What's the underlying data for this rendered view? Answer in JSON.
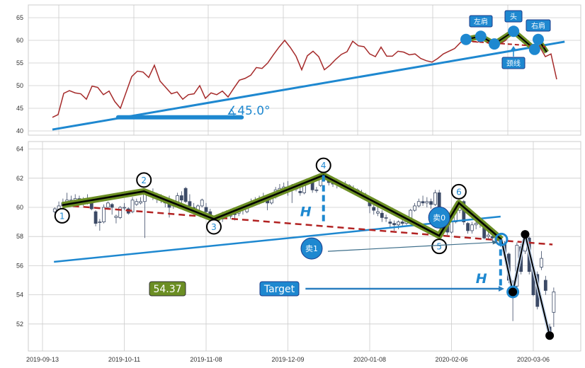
{
  "colors": {
    "price_line": "#a52a2a",
    "trend_blue": "#1e88d0",
    "pattern_green": "#6b8e23",
    "pattern_black": "#000000",
    "neckline_red": "#b22222",
    "candle_down": "#3c4a66",
    "candle_up": "#ffffff",
    "grid": "#cccccc"
  },
  "chart_data": [
    {
      "type": "line",
      "panel": "top",
      "ylim": [
        39,
        68
      ],
      "y_ticks": [
        "40",
        "45",
        "50",
        "55",
        "60",
        "65"
      ],
      "grid": true,
      "series": [
        {
          "values": [
            43.0,
            43.6,
            48.3,
            48.9,
            48.4,
            48.2,
            47.0,
            49.9,
            49.6,
            48.0,
            48.8,
            46.5,
            45.0,
            48.5,
            52.0,
            53.2,
            53.0,
            51.8,
            54.5,
            51.0,
            49.6,
            48.2,
            48.6,
            47.0,
            48.0,
            48.2,
            50.0,
            47.2,
            48.4,
            48.0,
            48.8,
            47.5,
            49.4,
            51.2,
            51.6,
            52.3,
            54.0,
            53.8,
            55.0,
            56.8,
            58.5,
            60.0,
            58.4,
            56.5,
            53.5,
            56.6,
            57.6,
            56.4,
            53.5,
            54.5,
            55.8,
            56.9,
            57.5,
            59.8,
            58.8,
            58.6,
            57.0,
            56.4,
            58.5,
            56.5,
            56.5,
            57.6,
            57.4,
            56.8,
            57.0,
            56.0,
            55.5,
            55.2,
            56.0,
            57.0,
            57.6,
            58.2,
            59.5,
            60.2,
            59.8,
            59.6,
            60.0,
            59.7,
            59.4,
            59.2,
            60.0,
            61.5,
            60.8,
            60.0,
            59.4,
            58.8,
            58.6,
            56.4,
            57.0,
            51.4
          ]
        }
      ],
      "trend_line": {
        "from": [
          0,
          40.3
        ],
        "to": [
          90.4,
          59.7
        ]
      },
      "angle_bar": {
        "from": [
          11.6,
          43.0
        ],
        "to": [
          33.4,
          43.0
        ]
      },
      "angle_label": "∡45.0°",
      "head_shoulders": {
        "points": [
          [
            73,
            60.2
          ],
          [
            75.6,
            60.9
          ],
          [
            78,
            59.2
          ],
          [
            81.4,
            62.0
          ],
          [
            85.1,
            58.0
          ],
          [
            85.75,
            60.2
          ]
        ],
        "labels": {
          "left_shoulder": "左肩",
          "head": "头",
          "right_shoulder": "右肩",
          "neckline": "颈线"
        }
      }
    },
    {
      "type": "candlestick",
      "panel": "bottom",
      "ylim": [
        50.1,
        64.5
      ],
      "y_ticks": [
        "52",
        "54",
        "56",
        "58",
        "60",
        "62",
        "64"
      ],
      "x_ticks": [
        "2019-09-13",
        "2019-10-11",
        "2019-11-08",
        "2019-12-09",
        "2020-01-08",
        "2020-02-06",
        "2020-03-06"
      ],
      "grid": true,
      "candle_fields": [
        "open",
        "close",
        "high",
        "low"
      ],
      "candles": [
        [
          59.7,
          59.9,
          60.0,
          59.6
        ],
        [
          59.8,
          60.1,
          60.4,
          59.7
        ],
        [
          60.1,
          60.3,
          60.6,
          60.0
        ],
        [
          60.4,
          60.5,
          61.0,
          60.2
        ],
        [
          60.5,
          60.5,
          60.8,
          60.3
        ],
        [
          60.5,
          60.6,
          60.9,
          60.4
        ],
        [
          60.6,
          60.5,
          60.8,
          60.3
        ],
        [
          60.4,
          60.3,
          60.7,
          60.1
        ],
        [
          60.3,
          60.4,
          60.9,
          60.2
        ],
        [
          60.3,
          59.9,
          60.4,
          59.8
        ],
        [
          59.7,
          58.9,
          59.8,
          58.7
        ],
        [
          59.0,
          59.0,
          59.2,
          58.4
        ],
        [
          59.0,
          60.0,
          60.2,
          58.9
        ],
        [
          60.0,
          60.3,
          60.4,
          59.9
        ],
        [
          60.2,
          60.0,
          60.3,
          59.5
        ],
        [
          59.3,
          59.4,
          59.5,
          58.9
        ],
        [
          59.3,
          60.0,
          60.1,
          59.2
        ],
        [
          60.0,
          60.0,
          60.3,
          59.8
        ],
        [
          59.9,
          59.6,
          60.0,
          59.5
        ],
        [
          59.7,
          60.5,
          60.7,
          59.6
        ],
        [
          60.2,
          60.4,
          60.6,
          60.1
        ],
        [
          60.3,
          60.4,
          60.7,
          60.2
        ],
        [
          60.4,
          61.0,
          61.2,
          57.9
        ],
        [
          61.0,
          61.0,
          61.2,
          60.8
        ],
        [
          61.0,
          60.7,
          61.3,
          60.5
        ],
        [
          60.7,
          60.6,
          61.0,
          60.3
        ],
        [
          60.6,
          60.5,
          60.9,
          60.3
        ],
        [
          60.4,
          60.3,
          60.7,
          60.0
        ],
        [
          60.2,
          60.0,
          60.8,
          59.3
        ],
        [
          60.1,
          60.2,
          60.5,
          59.9
        ],
        [
          60.3,
          60.8,
          61.0,
          60.2
        ],
        [
          60.8,
          60.5,
          61.1,
          60.3
        ],
        [
          61.3,
          60.4,
          61.4,
          60.3
        ],
        [
          60.4,
          60.1,
          60.9,
          59.8
        ],
        [
          60.0,
          59.7,
          60.3,
          59.5
        ],
        [
          59.8,
          60.1,
          60.2,
          59.6
        ],
        [
          60.1,
          60.5,
          60.6,
          60.0
        ],
        [
          60.0,
          59.7,
          60.3,
          59.4
        ],
        [
          59.7,
          59.4,
          59.9,
          59.2
        ],
        [
          59.3,
          59.1,
          59.4,
          58.9
        ],
        [
          59.1,
          59.3,
          59.5,
          58.9
        ],
        [
          59.2,
          59.5,
          59.7,
          59.0
        ],
        [
          59.5,
          59.5,
          59.8,
          59.3
        ],
        [
          59.4,
          59.6,
          59.9,
          59.2
        ],
        [
          59.6,
          59.5,
          59.9,
          59.1
        ],
        [
          59.6,
          59.9,
          60.1,
          59.4
        ],
        [
          59.9,
          59.9,
          60.1,
          59.5
        ],
        [
          59.7,
          60.2,
          60.3,
          59.6
        ],
        [
          60.2,
          60.4,
          60.6,
          60.1
        ],
        [
          60.5,
          60.5,
          60.7,
          60.2
        ],
        [
          60.6,
          60.4,
          60.8,
          60.2
        ],
        [
          60.4,
          60.6,
          61.0,
          60.3
        ],
        [
          60.5,
          60.3,
          60.9,
          59.8
        ],
        [
          60.3,
          60.7,
          60.9,
          60.2
        ],
        [
          60.7,
          61.2,
          61.4,
          60.6
        ],
        [
          61.1,
          61.3,
          61.6,
          61.0
        ],
        [
          61.3,
          61.4,
          61.7,
          61.2
        ],
        [
          61.4,
          61.2,
          61.8,
          60.8
        ],
        [
          61.2,
          61.5,
          61.6,
          60.3
        ],
        [
          61.3,
          61.3,
          61.6,
          61.1
        ],
        [
          61.1,
          61.0,
          61.5,
          60.8
        ],
        [
          61.0,
          61.7,
          61.8,
          60.9
        ],
        [
          61.7,
          61.8,
          62.0,
          61.6
        ],
        [
          62.0,
          61.2,
          62.1,
          61.0
        ],
        [
          61.2,
          61.2,
          61.4,
          61.0
        ],
        [
          61.5,
          62.1,
          62.3,
          61.4
        ],
        [
          62.1,
          61.9,
          62.2,
          61.8
        ],
        [
          62.0,
          61.7,
          62.1,
          61.5
        ],
        [
          61.8,
          61.6,
          61.9,
          61.4
        ],
        [
          61.6,
          61.6,
          61.9,
          61.3
        ],
        [
          61.5,
          61.6,
          61.8,
          61.3
        ],
        [
          61.6,
          61.5,
          61.8,
          61.3
        ],
        [
          61.5,
          61.4,
          61.6,
          61.2
        ],
        [
          61.3,
          61.3,
          61.5,
          61.1
        ],
        [
          61.2,
          61.1,
          61.3,
          60.9
        ],
        [
          61.0,
          60.9,
          61.2,
          60.6
        ],
        [
          60.8,
          60.7,
          61.0,
          60.5
        ],
        [
          60.5,
          60.1,
          60.7,
          59.6
        ],
        [
          60.0,
          59.8,
          60.3,
          59.5
        ],
        [
          59.6,
          59.7,
          60.0,
          59.4
        ],
        [
          59.6,
          59.3,
          59.8,
          59.0
        ],
        [
          59.3,
          59.3,
          59.5,
          59.0
        ],
        [
          59.0,
          58.9,
          59.2,
          58.6
        ],
        [
          58.9,
          58.8,
          59.1,
          58.4
        ],
        [
          58.8,
          59.0,
          59.1,
          58.5
        ],
        [
          59.0,
          58.9,
          59.2,
          58.7
        ],
        [
          58.9,
          59.1,
          59.3,
          58.8
        ],
        [
          59.1,
          59.8,
          59.9,
          59.0
        ],
        [
          59.8,
          60.1,
          60.3,
          59.7
        ],
        [
          60.1,
          60.4,
          60.6,
          60.0
        ],
        [
          60.4,
          60.3,
          60.8,
          60.1
        ],
        [
          60.3,
          60.4,
          60.7,
          60.0
        ],
        [
          60.4,
          60.2,
          60.6,
          59.9
        ],
        [
          60.2,
          61.0,
          61.2,
          60.1
        ],
        [
          61.0,
          59.8,
          61.2,
          59.6
        ],
        [
          59.6,
          59.0,
          59.8,
          58.8
        ],
        [
          58.9,
          58.3,
          59.0,
          58.1
        ],
        [
          58.3,
          59.0,
          59.1,
          58.2
        ],
        [
          59.0,
          59.8,
          60.0,
          58.9
        ],
        [
          59.8,
          60.3,
          60.5,
          59.6
        ],
        [
          60.4,
          59.0,
          60.5,
          58.8
        ],
        [
          58.9,
          58.4,
          59.0,
          58.2
        ],
        [
          58.4,
          58.8,
          59.0,
          58.2
        ],
        [
          58.8,
          58.9,
          59.2,
          58.5
        ],
        [
          59.0,
          58.9,
          59.1,
          58.6
        ],
        [
          59.0,
          57.9,
          59.1,
          57.8
        ],
        [
          58.0,
          58.1,
          58.3,
          57.8
        ],
        [
          58.0,
          57.9,
          58.1,
          57.6
        ],
        [
          57.9,
          57.8,
          58.2,
          57.6
        ],
        [
          57.8,
          57.6,
          58.0,
          57.3
        ],
        [
          57.5,
          56.9,
          57.7,
          56.6
        ],
        [
          56.8,
          55.0,
          56.9,
          54.8
        ],
        [
          54.8,
          54.3,
          55.0,
          52.2
        ],
        [
          54.6,
          57.4,
          57.6,
          54.5
        ],
        [
          57.3,
          55.6,
          57.5,
          55.4
        ],
        [
          57.0,
          58.1,
          58.3,
          56.8
        ],
        [
          57.9,
          55.6,
          58.0,
          55.4
        ],
        [
          55.8,
          54.0,
          56.0,
          53.9
        ],
        [
          55.4,
          53.2,
          55.6,
          53.0
        ],
        [
          55.9,
          56.5,
          57.0,
          55.7
        ],
        [
          55.0,
          54.3,
          55.3,
          54.0
        ],
        [
          51.8,
          51.3,
          52.0,
          51.1
        ],
        [
          52.8,
          54.2,
          54.5,
          51.8
        ]
      ],
      "pattern_points": [
        {
          "label": "1",
          "x": 4.8,
          "y": 60.15
        },
        {
          "label": "2",
          "x": 24.8,
          "y": 61.1
        },
        {
          "label": "3",
          "x": 41.9,
          "y": 59.2
        },
        {
          "label": "4",
          "x": 68.7,
          "y": 62.2
        },
        {
          "label": "5",
          "x": 97,
          "y": 58.05
        },
        {
          "label": "6",
          "x": 101.8,
          "y": 60.3
        },
        {
          "label": "",
          "x": 112.2,
          "y": 57.8
        }
      ],
      "breakdown_points": [
        [
          112.2,
          57.8
        ],
        [
          115,
          54.2
        ],
        [
          118,
          58.15
        ],
        [
          124,
          51.2
        ]
      ],
      "neckline": {
        "from": [
          4.8,
          60.15
        ],
        "to": [
          124.7,
          57.45
        ]
      },
      "trend_line": {
        "from": [
          2.8,
          56.26
        ],
        "to": [
          112,
          59.37
        ]
      },
      "target": {
        "label": "Target",
        "value_label": "54.37",
        "y": 54.42,
        "from_x": 64.3,
        "to_x": 112.9
      },
      "height_markers": [
        {
          "label": "H",
          "x": 68.7,
          "from": 62.2,
          "to": 58.9
        },
        {
          "label": "H",
          "x": 112,
          "from": 57.8,
          "to": 54.4
        }
      ],
      "signals": [
        {
          "label": "卖1",
          "x": 65.8,
          "y": 57.18,
          "arrow_to": [
            111.3,
            57.6
          ]
        },
        {
          "label": "卖0",
          "x": 97,
          "y": 59.3
        }
      ]
    }
  ]
}
